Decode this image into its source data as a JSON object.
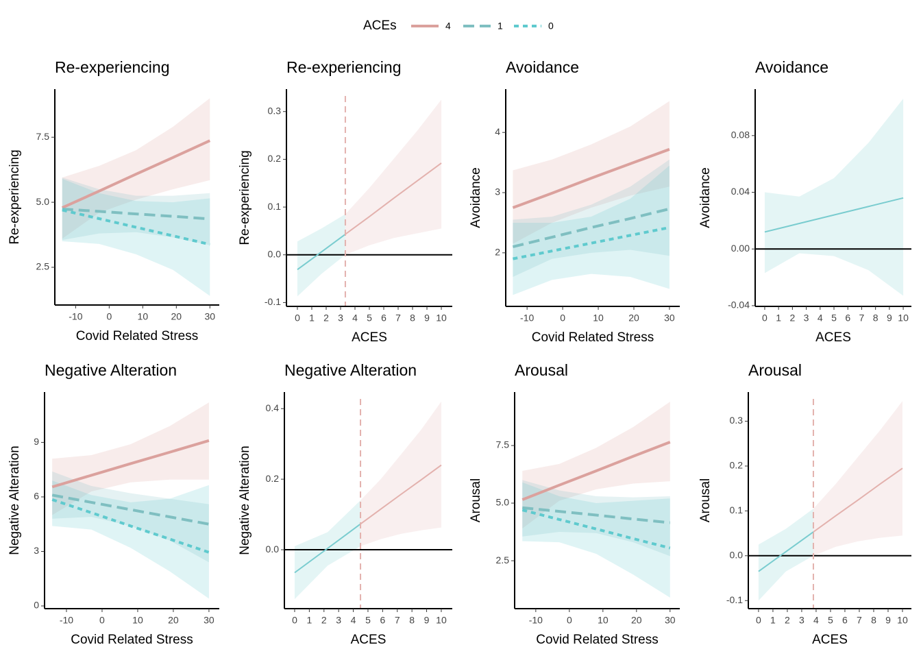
{
  "legend": {
    "title": "ACEs",
    "entries": [
      {
        "name": "4",
        "color": "#dba19d",
        "linestyle": "solid"
      },
      {
        "name": "1",
        "color": "#7fbfc1",
        "linestyle": "longdash"
      },
      {
        "name": "0",
        "color": "#5fcace",
        "linestyle": "dotted"
      }
    ]
  },
  "chart_data": [
    {
      "type": "line",
      "title": "Re-experiencing",
      "x_label": "Covid Related Stress",
      "y_label": "Re-experiencing",
      "xlim": [
        -16.2,
        32.8
      ],
      "ylim": [
        1.05,
        9.35
      ],
      "xticks": [
        -10,
        0,
        10,
        20,
        30
      ],
      "yticks": [
        2.5,
        {
          "value": 5,
          "label": "5.0"
        },
        7.5
      ],
      "series": [
        {
          "color": "#dba19d",
          "linestyle": "solid",
          "width": 4,
          "x": [
            -14,
            -3,
            8,
            19,
            30
          ],
          "values": [
            4.79,
            5.43,
            6.08,
            6.72,
            7.37
          ],
          "lower": [
            3.6,
            4.6,
            5.1,
            5.5,
            5.85
          ],
          "upper": [
            5.95,
            6.4,
            7.0,
            7.9,
            9.0
          ]
        },
        {
          "color": "#7fbfc1",
          "linestyle": "longdash",
          "width": 4,
          "x": [
            -14,
            -3,
            8,
            19,
            30
          ],
          "values": [
            4.74,
            4.65,
            4.55,
            4.46,
            4.36
          ],
          "lower": [
            3.55,
            3.8,
            3.85,
            3.65,
            3.35
          ],
          "upper": [
            5.95,
            5.5,
            5.25,
            5.25,
            5.35
          ]
        },
        {
          "color": "#5fcace",
          "linestyle": "dotted",
          "width": 4,
          "x": [
            -14,
            -3,
            8,
            19,
            30
          ],
          "values": [
            4.7,
            4.37,
            4.04,
            3.71,
            3.38
          ],
          "lower": [
            3.5,
            3.4,
            3.0,
            2.4,
            1.4
          ],
          "upper": [
            5.9,
            5.35,
            5.05,
            5.0,
            5.15
          ]
        }
      ]
    },
    {
      "type": "line",
      "title": "Re-experiencing",
      "x_label": "ACES",
      "y_label": "Re-experiencing",
      "xlim": [
        -0.76,
        10.76
      ],
      "ylim": [
        -0.108,
        0.347
      ],
      "xticks": [
        0,
        1,
        2,
        3,
        4,
        5,
        6,
        7,
        8,
        9,
        10
      ],
      "yticks": [
        -0.1,
        {
          "value": 0,
          "label": "0.0"
        },
        0.1,
        0.2,
        0.3
      ],
      "hline": 0,
      "vline": 3.33,
      "vline_color": "#e3b1ad",
      "series": [
        {
          "color": "#79cccf",
          "linestyle": "solid",
          "width": 2,
          "x": [
            0,
            1.67,
            3.33
          ],
          "values": [
            -0.031,
            0.006,
            0.043
          ],
          "lower": [
            -0.087,
            -0.04,
            0.0
          ],
          "upper": [
            0.028,
            0.055,
            0.085
          ]
        },
        {
          "color": "#e3b1ad",
          "linestyle": "solid",
          "width": 2,
          "x": [
            3.33,
            5,
            6.67,
            8.33,
            10
          ],
          "values": [
            0.043,
            0.08,
            0.118,
            0.155,
            0.192
          ],
          "lower": [
            0.0,
            0.02,
            0.035,
            0.045,
            0.055
          ],
          "upper": [
            0.085,
            0.14,
            0.2,
            0.26,
            0.325
          ]
        }
      ]
    },
    {
      "type": "line",
      "title": "Avoidance",
      "x_label": "Covid Related Stress",
      "y_label": "Avoidance",
      "xlim": [
        -16,
        32.9
      ],
      "ylim": [
        1.11,
        4.72
      ],
      "xticks": [
        -10,
        0,
        10,
        20,
        30
      ],
      "yticks": [
        2,
        3,
        4
      ],
      "series": [
        {
          "color": "#dba19d",
          "linestyle": "solid",
          "width": 4,
          "x": [
            -14,
            -3,
            8,
            19,
            30
          ],
          "values": [
            2.75,
            2.99,
            3.24,
            3.48,
            3.72
          ],
          "lower": [
            2.15,
            2.5,
            2.75,
            2.95,
            3.1
          ],
          "upper": [
            3.37,
            3.55,
            3.8,
            4.1,
            4.52
          ]
        },
        {
          "color": "#7fbfc1",
          "linestyle": "longdash",
          "width": 4,
          "x": [
            -14,
            -3,
            8,
            19,
            30
          ],
          "values": [
            2.1,
            2.26,
            2.42,
            2.57,
            2.73
          ],
          "lower": [
            1.6,
            1.9,
            2.0,
            2.05,
            1.95
          ],
          "upper": [
            2.55,
            2.6,
            2.8,
            3.1,
            3.55
          ]
        },
        {
          "color": "#5fcace",
          "linestyle": "dotted",
          "width": 4,
          "x": [
            -14,
            -3,
            8,
            19,
            30
          ],
          "values": [
            1.9,
            2.03,
            2.16,
            2.29,
            2.42
          ],
          "lower": [
            1.3,
            1.55,
            1.65,
            1.6,
            1.4
          ],
          "upper": [
            2.5,
            2.5,
            2.6,
            2.9,
            3.45
          ]
        }
      ]
    },
    {
      "type": "line",
      "title": "Avoidance",
      "x_label": "ACES",
      "y_label": "Avoidance",
      "xlim": [
        -0.69,
        10.59
      ],
      "ylim": [
        -0.0405,
        0.1128
      ],
      "xticks": [
        0,
        1,
        2,
        3,
        4,
        5,
        6,
        7,
        8,
        9,
        10
      ],
      "yticks": [
        -0.04,
        {
          "value": 0,
          "label": "0.00"
        },
        0.04,
        0.08
      ],
      "hline": 0,
      "series": [
        {
          "color": "#79cccf",
          "linestyle": "solid",
          "width": 2,
          "x": [
            0,
            2.5,
            5,
            7.5,
            10
          ],
          "values": [
            0.012,
            0.018,
            0.024,
            0.03,
            0.036
          ],
          "lower": [
            -0.017,
            -0.003,
            -0.005,
            -0.015,
            -0.033
          ],
          "upper": [
            0.04,
            0.037,
            0.05,
            0.075,
            0.106
          ]
        }
      ]
    },
    {
      "type": "line",
      "title": "Negative Alteration",
      "x_label": "Covid Related Stress",
      "y_label": "Negative Alteration",
      "xlim": [
        -16.15,
        32.9
      ],
      "ylim": [
        -0.15,
        11.77
      ],
      "xticks": [
        -10,
        0,
        10,
        20,
        30
      ],
      "yticks": [
        0,
        3,
        6,
        9
      ],
      "series": [
        {
          "color": "#dba19d",
          "linestyle": "solid",
          "width": 4,
          "x": [
            -14,
            -3,
            8,
            19,
            30
          ],
          "values": [
            6.55,
            7.19,
            7.83,
            8.46,
            9.1
          ],
          "lower": [
            5.0,
            6.3,
            6.8,
            6.95,
            6.95
          ],
          "upper": [
            8.1,
            8.3,
            8.9,
            9.9,
            11.2
          ]
        },
        {
          "color": "#7fbfc1",
          "linestyle": "longdash",
          "width": 4,
          "x": [
            -14,
            -3,
            8,
            19,
            30
          ],
          "values": [
            6.1,
            5.7,
            5.3,
            4.9,
            4.5
          ],
          "lower": [
            4.8,
            4.9,
            4.4,
            3.6,
            2.4
          ],
          "upper": [
            7.4,
            6.6,
            6.2,
            5.9,
            5.6
          ]
        },
        {
          "color": "#5fcace",
          "linestyle": "dotted",
          "width": 4,
          "x": [
            -14,
            -3,
            8,
            19,
            30
          ],
          "values": [
            5.85,
            5.13,
            4.4,
            3.68,
            2.95
          ],
          "lower": [
            4.4,
            4.2,
            3.2,
            1.9,
            0.4
          ],
          "upper": [
            6.9,
            6.1,
            5.7,
            5.9,
            6.65
          ]
        }
      ]
    },
    {
      "type": "line",
      "title": "Negative Alteration",
      "x_label": "ACES",
      "y_label": "Negative Alteration",
      "xlim": [
        -0.7,
        10.75
      ],
      "ylim": [
        -0.167,
        0.447
      ],
      "xticks": [
        0,
        1,
        2,
        3,
        4,
        5,
        6,
        7,
        8,
        9,
        10
      ],
      "yticks": [
        {
          "value": 0,
          "label": "0.0"
        },
        0.2,
        0.4
      ],
      "hline": 0,
      "vline": 4.49,
      "vline_color": "#e3b1ad",
      "series": [
        {
          "color": "#79cccf",
          "linestyle": "solid",
          "width": 2,
          "x": [
            0,
            2.25,
            4.49
          ],
          "values": [
            -0.065,
            0.004,
            0.073
          ],
          "lower": [
            -0.14,
            -0.045,
            0.01
          ],
          "upper": [
            0.01,
            0.05,
            0.14
          ]
        },
        {
          "color": "#e3b1ad",
          "linestyle": "solid",
          "width": 2,
          "x": [
            4.49,
            5.87,
            7.25,
            8.62,
            10
          ],
          "values": [
            0.073,
            0.115,
            0.157,
            0.198,
            0.24
          ],
          "lower": [
            0.01,
            0.03,
            0.045,
            0.055,
            0.063
          ],
          "upper": [
            0.14,
            0.2,
            0.27,
            0.34,
            0.42
          ]
        }
      ]
    },
    {
      "type": "line",
      "title": "Arousal",
      "x_label": "Covid Related Stress",
      "y_label": "Arousal",
      "xlim": [
        -16.3,
        32.9
      ],
      "ylim": [
        0.42,
        9.82
      ],
      "xticks": [
        -10,
        0,
        10,
        20,
        30
      ],
      "yticks": [
        2.5,
        {
          "value": 5,
          "label": "5.0"
        },
        7.5
      ],
      "series": [
        {
          "color": "#dba19d",
          "linestyle": "solid",
          "width": 4,
          "x": [
            -14,
            -3,
            8,
            19,
            30
          ],
          "values": [
            5.15,
            5.78,
            6.4,
            7.03,
            7.65
          ],
          "lower": [
            3.9,
            5.1,
            5.6,
            5.85,
            5.95
          ],
          "upper": [
            6.4,
            6.7,
            7.4,
            8.3,
            9.4
          ]
        },
        {
          "color": "#7fbfc1",
          "linestyle": "longdash",
          "width": 4,
          "x": [
            -14,
            -3,
            8,
            19,
            30
          ],
          "values": [
            4.8,
            4.64,
            4.48,
            4.31,
            4.15
          ],
          "lower": [
            3.55,
            3.75,
            3.7,
            3.3,
            2.7
          ],
          "upper": [
            6.0,
            5.55,
            5.3,
            5.25,
            5.3
          ]
        },
        {
          "color": "#5fcace",
          "linestyle": "dotted",
          "width": 4,
          "x": [
            -14,
            -3,
            8,
            19,
            30
          ],
          "values": [
            4.7,
            4.29,
            3.88,
            3.46,
            3.05
          ],
          "lower": [
            3.35,
            3.3,
            2.8,
            1.9,
            0.9
          ],
          "upper": [
            5.9,
            5.3,
            5.0,
            5.1,
            5.2
          ]
        }
      ]
    },
    {
      "type": "line",
      "title": "Arousal",
      "x_label": "ACES",
      "y_label": "Arousal",
      "xlim": [
        -0.71,
        10.62
      ],
      "ylim": [
        -0.118,
        0.365
      ],
      "xticks": [
        0,
        1,
        2,
        3,
        4,
        5,
        6,
        7,
        8,
        9,
        10
      ],
      "yticks": [
        -0.1,
        {
          "value": 0,
          "label": "0.0"
        },
        0.1,
        0.2,
        0.3
      ],
      "hline": 0,
      "vline": 3.81,
      "vline_color": "#e3b1ad",
      "series": [
        {
          "color": "#79cccf",
          "linestyle": "solid",
          "width": 2,
          "x": [
            0,
            1.9,
            3.81
          ],
          "values": [
            -0.035,
            0.009,
            0.053
          ],
          "lower": [
            -0.1,
            -0.035,
            0.0
          ],
          "upper": [
            0.025,
            0.06,
            0.105
          ]
        },
        {
          "color": "#e3b1ad",
          "linestyle": "solid",
          "width": 2,
          "x": [
            3.81,
            5.36,
            6.9,
            8.45,
            10
          ],
          "values": [
            0.053,
            0.089,
            0.124,
            0.16,
            0.195
          ],
          "lower": [
            0.0,
            0.02,
            0.032,
            0.04,
            0.045
          ],
          "upper": [
            0.105,
            0.16,
            0.22,
            0.28,
            0.345
          ]
        }
      ]
    }
  ]
}
